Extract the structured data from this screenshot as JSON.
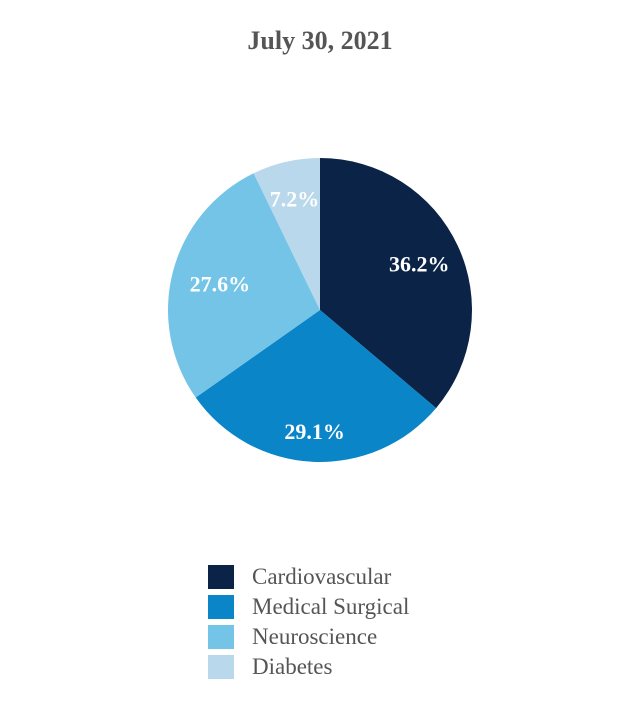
{
  "chart_data": {
    "type": "pie",
    "title": "July 30, 2021",
    "categories": [
      "Cardiovascular",
      "Medical Surgical",
      "Neuroscience",
      "Diabetes"
    ],
    "values": [
      36.2,
      29.1,
      27.6,
      7.2
    ],
    "value_labels": [
      "36.2%",
      "29.1%",
      "27.6%",
      "7.2%"
    ],
    "colors": [
      "#0b2347",
      "#0a85c8",
      "#73c4e7",
      "#b9d8eb"
    ],
    "start_angle": "12 o'clock",
    "direction": "clockwise",
    "legend": "bottom"
  }
}
